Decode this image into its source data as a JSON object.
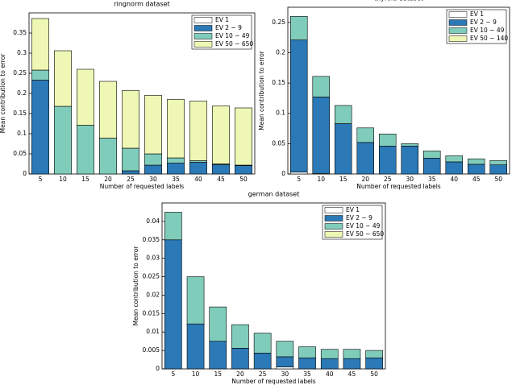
{
  "chart_data": [
    {
      "type": "stacked-bar",
      "title": "ringnorm dataset",
      "x_label": "Number of requested labels",
      "y_label": "Mean contribution to error",
      "categories": [
        "5",
        "10",
        "15",
        "20",
        "25",
        "30",
        "35",
        "40",
        "45",
        "50"
      ],
      "series": [
        {
          "name": "EV 1",
          "color": "#ffffff",
          "values": [
            0,
            0,
            0,
            0,
            0,
            0,
            0,
            0,
            0,
            0
          ]
        },
        {
          "name": "EV 2 − 9",
          "color": "#2b79b6",
          "values": [
            0.233,
            0,
            0,
            0,
            0.008,
            0.022,
            0.027,
            0.029,
            0.023,
            0.021
          ]
        },
        {
          "name": "EV 10 − 49",
          "color": "#80ccbb",
          "values": [
            0.025,
            0.168,
            0.121,
            0.089,
            0.056,
            0.028,
            0.013,
            0.004,
            0.002,
            0.001
          ]
        },
        {
          "name": "EV 50 − 650",
          "color": "#eef7b4",
          "values": [
            0.128,
            0.138,
            0.139,
            0.141,
            0.143,
            0.145,
            0.145,
            0.148,
            0.144,
            0.142
          ]
        }
      ],
      "ylim": [
        0,
        0.4
      ],
      "yticks": [
        0,
        0.05,
        0.1,
        0.15,
        0.2,
        0.25,
        0.3,
        0.35
      ],
      "legend": "upper right"
    },
    {
      "type": "stacked-bar",
      "title": "thyroid dataset",
      "x_label": "Number of requested labels",
      "y_label": "Mean contribution to error",
      "categories": [
        "5",
        "10",
        "15",
        "20",
        "25",
        "30",
        "35",
        "40",
        "45",
        "50"
      ],
      "series": [
        {
          "name": "EV 1",
          "color": "#ffffff",
          "values": [
            0.003,
            0.001,
            0,
            0,
            0,
            0,
            0,
            0,
            0,
            0
          ]
        },
        {
          "name": "EV 2 − 9",
          "color": "#2b79b6",
          "values": [
            0.218,
            0.126,
            0.083,
            0.052,
            0.046,
            0.046,
            0.026,
            0.02,
            0.016,
            0.015
          ]
        },
        {
          "name": "EV 10 − 49",
          "color": "#80ccbb",
          "values": [
            0.039,
            0.034,
            0.03,
            0.024,
            0.02,
            0.004,
            0.012,
            0.01,
            0.009,
            0.007
          ]
        },
        {
          "name": "EV 50 − 140",
          "color": "#eef7b4",
          "values": [
            0,
            0,
            0,
            0,
            0,
            0,
            0,
            0,
            0,
            0
          ]
        }
      ],
      "ylim": [
        0,
        0.275
      ],
      "yticks": [
        0,
        0.05,
        0.1,
        0.15,
        0.2,
        0.25
      ],
      "legend": "upper right"
    },
    {
      "type": "stacked-bar",
      "title": "german dataset",
      "x_label": "Number of requested labels",
      "y_label": "Mean contribution to error",
      "categories": [
        "5",
        "10",
        "15",
        "20",
        "25",
        "30",
        "35",
        "40",
        "45",
        "50"
      ],
      "series": [
        {
          "name": "EV 1",
          "color": "#ffffff",
          "values": [
            0,
            0,
            0,
            0,
            0,
            0.0005,
            0,
            0,
            0,
            0
          ]
        },
        {
          "name": "EV 2 − 9",
          "color": "#2b79b6",
          "values": [
            0.035,
            0.0122,
            0.0075,
            0.0056,
            0.0043,
            0.0028,
            0.003,
            0.0028,
            0.0028,
            0.003
          ]
        },
        {
          "name": "EV 10 − 49",
          "color": "#80ccbb",
          "values": [
            0.0075,
            0.0128,
            0.0093,
            0.0064,
            0.0054,
            0.0042,
            0.003,
            0.0025,
            0.0025,
            0.002
          ]
        },
        {
          "name": "EV 50 − 650",
          "color": "#eef7b4",
          "values": [
            0,
            0,
            0,
            0,
            0,
            0,
            0,
            0,
            0,
            0
          ]
        }
      ],
      "ylim": [
        0,
        0.045
      ],
      "yticks": [
        0,
        0.005,
        0.01,
        0.015,
        0.02,
        0.025,
        0.03,
        0.035,
        0.04
      ],
      "legend": "upper right"
    }
  ]
}
